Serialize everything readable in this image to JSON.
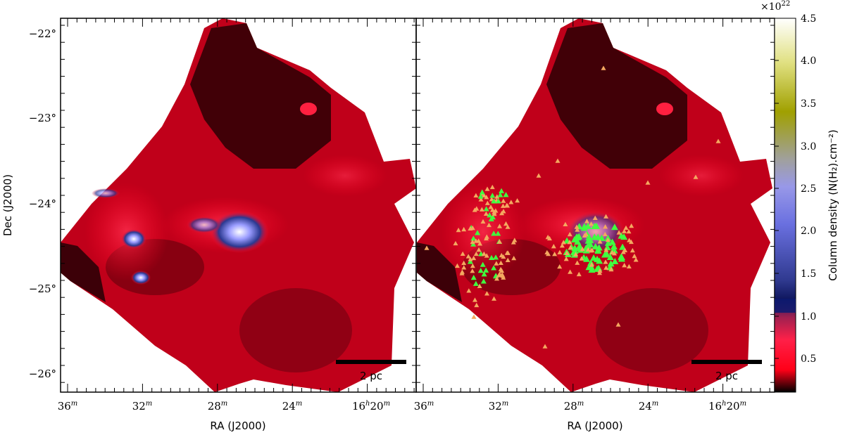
{
  "panels": {
    "x_axis_title": "RA (J2000)",
    "y_axis_title": "Dec (J2000)",
    "x_tick_labels": [
      "36",
      "32",
      "28",
      "24",
      "16",
      "20"
    ],
    "x_tick_sup": "m",
    "x_tick_hours_sup": "h",
    "y_tick_labels": [
      "−22°",
      "−23°",
      "−24°",
      "−25°",
      "−26°"
    ],
    "scale_bar_label": "2 pc"
  },
  "colorbar": {
    "title": "Column density (N(H₂).cm⁻²)",
    "multiplier_base": "×10",
    "multiplier_exp": "22",
    "tick_labels": [
      "4.5",
      "4.0",
      "3.5",
      "3.0",
      "2.5",
      "2.0",
      "1.5",
      "1.0",
      "0.5"
    ],
    "colors": [
      "#000000",
      "#ff0020",
      "#0a1a6e",
      "#8080ff",
      "#b0b060",
      "#ffffff"
    ]
  },
  "markers": {
    "young_color": "#f4a860",
    "protostar_color": "#40ff40"
  }
}
